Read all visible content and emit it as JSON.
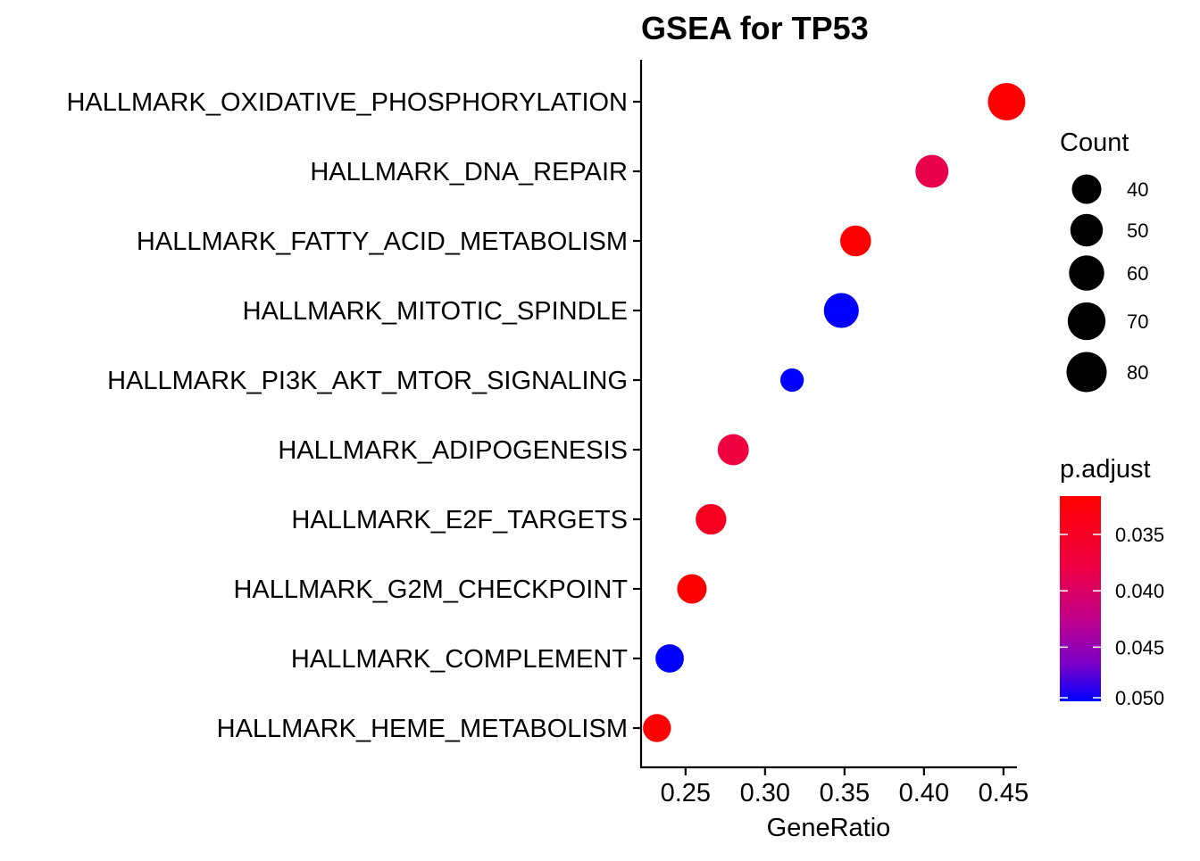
{
  "chart_data": {
    "type": "scatter",
    "title": "GSEA for TP53",
    "xlabel": "GeneRatio",
    "ylabel": "",
    "xlim": [
      0.222,
      0.4585
    ],
    "xticks": [
      0.25,
      0.3,
      0.35,
      0.4,
      0.45
    ],
    "xtick_labels": [
      "0.25",
      "0.30",
      "0.35",
      "0.40",
      "0.45"
    ],
    "grid": false,
    "points": [
      {
        "term": "HALLMARK_OXIDATIVE_PHOSPHORYLATION",
        "gene_ratio": 0.452,
        "count": 84,
        "p_adjust": 0.0316
      },
      {
        "term": "HALLMARK_DNA_REPAIR",
        "gene_ratio": 0.405,
        "count": 65,
        "p_adjust": 0.0385
      },
      {
        "term": "HALLMARK_FATTY_ACID_METABOLISM",
        "gene_ratio": 0.357,
        "count": 57,
        "p_adjust": 0.0318
      },
      {
        "term": "HALLMARK_MITOTIC_SPINDLE",
        "gene_ratio": 0.348,
        "count": 73,
        "p_adjust": 0.0498
      },
      {
        "term": "HALLMARK_PI3K_AKT_MTOR_SIGNALING",
        "gene_ratio": 0.317,
        "count": 33,
        "p_adjust": 0.0498
      },
      {
        "term": "HALLMARK_ADIPOGENESIS",
        "gene_ratio": 0.28,
        "count": 58,
        "p_adjust": 0.0375
      },
      {
        "term": "HALLMARK_E2F_TARGETS",
        "gene_ratio": 0.266,
        "count": 56,
        "p_adjust": 0.0345
      },
      {
        "term": "HALLMARK_G2M_CHECKPOINT",
        "gene_ratio": 0.254,
        "count": 52,
        "p_adjust": 0.0316
      },
      {
        "term": "HALLMARK_COMPLEMENT",
        "gene_ratio": 0.24,
        "count": 48,
        "p_adjust": 0.0498
      },
      {
        "term": "HALLMARK_HEME_METABOLISM",
        "gene_ratio": 0.232,
        "count": 47,
        "p_adjust": 0.0316
      }
    ],
    "size_legend": {
      "title": "Count",
      "values": [
        40,
        50,
        60,
        70,
        80
      ],
      "labels": [
        "40",
        "50",
        "60",
        "70",
        "80"
      ]
    },
    "color_legend": {
      "title": "p.adjust",
      "range": [
        0.0316,
        0.0498
      ],
      "ticks": [
        0.035,
        0.04,
        0.045,
        0.05
      ],
      "tick_labels": [
        "0.035",
        "0.040",
        "0.045",
        "0.050"
      ],
      "low_color": "#ff0000",
      "high_color": "#0000ff"
    }
  }
}
